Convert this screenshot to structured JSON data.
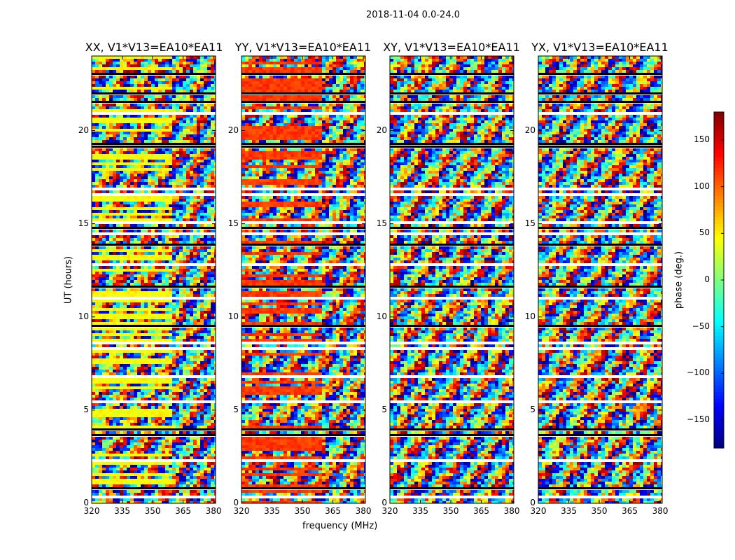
{
  "chart_data": {
    "type": "heatmap",
    "suptitle": "2018-11-04 0.0-24.0",
    "xlabel": "frequency (MHz)",
    "ylabel": "UT (hours)",
    "xlim": [
      320,
      381
    ],
    "ylim": [
      0,
      24
    ],
    "xticks": [
      320,
      335,
      350,
      365,
      380
    ],
    "yticks": [
      0,
      5,
      10,
      15,
      20
    ],
    "panels": [
      {
        "title": "XX, V1*V13=EA10*EA11",
        "product": "XX"
      },
      {
        "title": "YY, V1*V13=EA10*EA11",
        "product": "YY"
      },
      {
        "title": "XY, V1*V13=EA10*EA11",
        "product": "XY"
      },
      {
        "title": "YX, V1*V13=EA10*EA11",
        "product": "YX"
      }
    ],
    "colorbar": {
      "label": "phase (deg.)",
      "range": [
        -180,
        180
      ],
      "ticks": [
        -150,
        -100,
        -50,
        0,
        50,
        100,
        150
      ],
      "ticklabels": [
        "−150",
        "−100",
        "−50",
        "0",
        "50",
        "100",
        "150"
      ],
      "colormap": "jet"
    }
  }
}
